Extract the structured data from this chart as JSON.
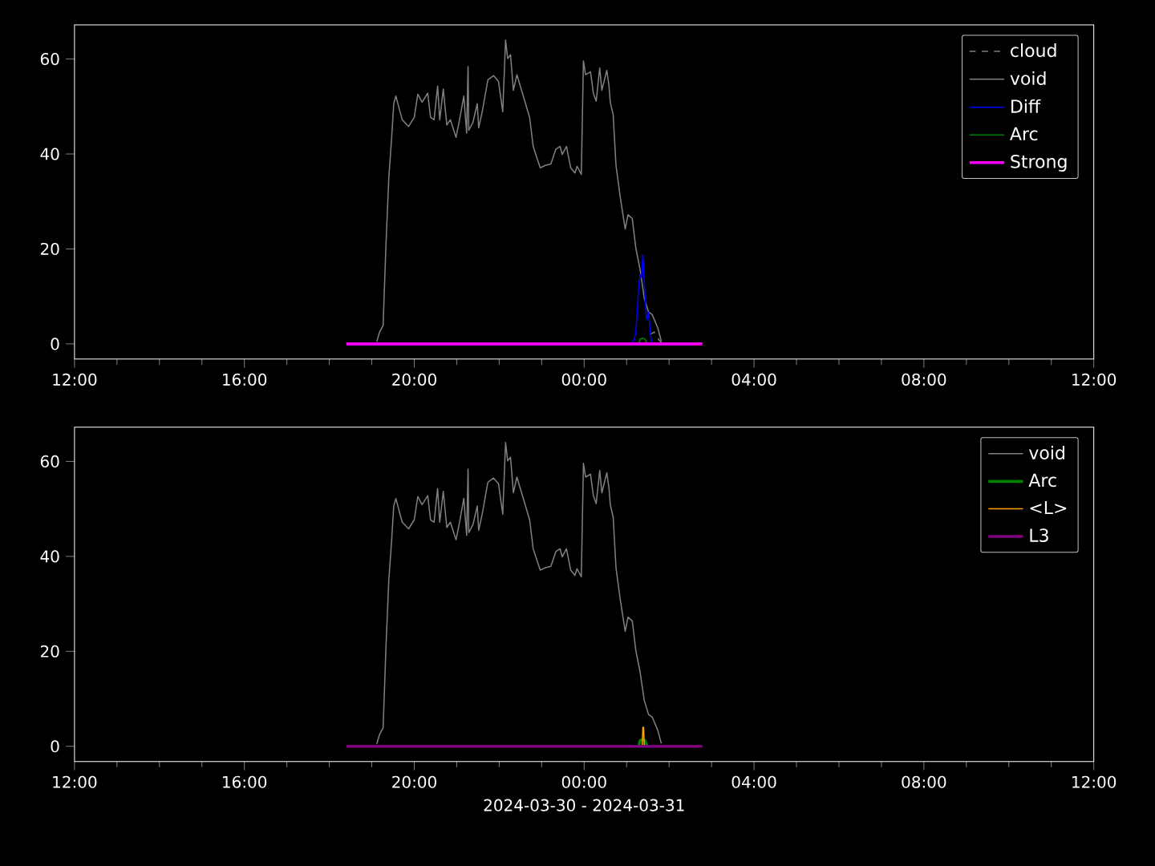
{
  "chart_data": [
    {
      "type": "line",
      "xlim": [
        "2024-03-30T12:00",
        "2024-03-31T12:00"
      ],
      "ylim": [
        -3.2,
        67.2
      ],
      "xticks": [
        {
          "value": "2024-03-30T12:00",
          "label": "12:00"
        },
        {
          "value": "2024-03-30T16:00",
          "label": "16:00"
        },
        {
          "value": "2024-03-30T20:00",
          "label": "20:00"
        },
        {
          "value": "2024-03-31T00:00",
          "label": "00:00"
        },
        {
          "value": "2024-03-31T04:00",
          "label": "04:00"
        },
        {
          "value": "2024-03-31T08:00",
          "label": "08:00"
        },
        {
          "value": "2024-03-31T12:00",
          "label": "12:00"
        }
      ],
      "yticks": [
        0,
        20,
        40,
        60
      ],
      "legend": "top right",
      "series": [
        {
          "name": "cloud",
          "color": "#808080",
          "line_style": "dashed",
          "x": [
            "2024-03-31T01:33",
            "2024-03-31T01:39",
            "2024-03-31T01:45",
            "2024-03-31T01:51"
          ],
          "values": [
            2,
            2.5,
            1,
            0
          ]
        },
        {
          "name": "void",
          "color": "#808080",
          "x": [
            "2024-03-30T19:07",
            "2024-03-30T19:11",
            "2024-03-30T19:16",
            "2024-03-30T19:20",
            "2024-03-30T19:24",
            "2024-03-30T19:28",
            "2024-03-30T19:31",
            "2024-03-30T19:34",
            "2024-03-30T19:39",
            "2024-03-30T19:43",
            "2024-03-30T19:52",
            "2024-03-30T20:00",
            "2024-03-30T20:05",
            "2024-03-30T20:11",
            "2024-03-30T20:19",
            "2024-03-30T20:23",
            "2024-03-30T20:28",
            "2024-03-30T20:33",
            "2024-03-30T20:36",
            "2024-03-30T20:41",
            "2024-03-30T20:46",
            "2024-03-30T20:51",
            "2024-03-30T20:59",
            "2024-03-30T21:04",
            "2024-03-30T21:10",
            "2024-03-30T21:14",
            "2024-03-30T21:16",
            "2024-03-30T21:17",
            "2024-03-30T21:23",
            "2024-03-30T21:29",
            "2024-03-30T21:31",
            "2024-03-30T21:36",
            "2024-03-30T21:44",
            "2024-03-30T21:52",
            "2024-03-30T21:59",
            "2024-03-30T22:05",
            "2024-03-30T22:09",
            "2024-03-30T22:12",
            "2024-03-30T22:16",
            "2024-03-30T22:20",
            "2024-03-30T22:25",
            "2024-03-30T22:35",
            "2024-03-30T22:43",
            "2024-03-30T22:48",
            "2024-03-30T22:53",
            "2024-03-30T22:58",
            "2024-03-30T23:05",
            "2024-03-30T23:13",
            "2024-03-30T23:20",
            "2024-03-30T23:26",
            "2024-03-30T23:29",
            "2024-03-30T23:35",
            "2024-03-30T23:41",
            "2024-03-30T23:47",
            "2024-03-30T23:50",
            "2024-03-30T23:56",
            "2024-03-30T23:59",
            "2024-03-31T00:02",
            "2024-03-31T00:09",
            "2024-03-31T00:13",
            "2024-03-31T00:17",
            "2024-03-31T00:22",
            "2024-03-31T00:25",
            "2024-03-31T00:32",
            "2024-03-31T00:35",
            "2024-03-31T00:37",
            "2024-03-31T00:41",
            "2024-03-31T00:45",
            "2024-03-31T00:51",
            "2024-03-31T00:58",
            "2024-03-31T01:02",
            "2024-03-31T01:08",
            "2024-03-31T01:13",
            "2024-03-31T01:19",
            "2024-03-31T01:25",
            "2024-03-31T01:31",
            "2024-03-31T01:36",
            "2024-03-31T01:44",
            "2024-03-31T01:49"
          ],
          "values": [
            0.5,
            2.5,
            3.9,
            20.8,
            34.9,
            43.3,
            50.6,
            52.2,
            49.4,
            47.2,
            45.8,
            47.7,
            52.6,
            50.9,
            52.8,
            47.7,
            47.2,
            54.3,
            47.2,
            53.7,
            46.1,
            47.2,
            43.5,
            47.2,
            52.2,
            44.4,
            58.4,
            45.0,
            46.7,
            50.6,
            45.5,
            48.9,
            55.6,
            56.5,
            55.3,
            48.9,
            64.0,
            60.1,
            60.9,
            53.4,
            56.7,
            51.7,
            47.7,
            41.6,
            39.3,
            37.1,
            37.6,
            37.9,
            41.0,
            41.6,
            39.9,
            41.6,
            37.1,
            36.0,
            37.4,
            35.7,
            59.6,
            56.7,
            57.3,
            52.8,
            51.1,
            58.1,
            53.4,
            57.6,
            54.5,
            50.8,
            48.3,
            37.6,
            30.9,
            24.2,
            27.2,
            26.4,
            20.2,
            15.7,
            9.6,
            6.7,
            6.2,
            3.4,
            0.6
          ]
        },
        {
          "name": "Diff",
          "color": "#0000ff",
          "x": [
            "2024-03-31T01:06",
            "2024-03-31T01:10",
            "2024-03-31T01:13",
            "2024-03-31T01:17",
            "2024-03-31T01:19",
            "2024-03-31T01:21",
            "2024-03-31T01:23",
            "2024-03-31T01:26",
            "2024-03-31T01:28",
            "2024-03-31T01:31",
            "2024-03-31T01:34",
            "2024-03-31T01:35",
            "2024-03-31T01:37"
          ],
          "values": [
            0,
            0.6,
            2.2,
            11.8,
            14.6,
            14.0,
            18.8,
            10.1,
            5.1,
            6.7,
            1.7,
            0.6,
            0
          ]
        },
        {
          "name": "Arc",
          "color": "#008000",
          "x": [
            "2024-03-31T01:17",
            "2024-03-31T01:19",
            "2024-03-31T01:23",
            "2024-03-31T01:26",
            "2024-03-31T01:29"
          ],
          "values": [
            0,
            1,
            1.2,
            1,
            0
          ]
        },
        {
          "name": "Strong",
          "color": "#ff00ff",
          "x": [
            "2024-03-30T18:24",
            "2024-03-31T02:47"
          ],
          "values": [
            0,
            0
          ]
        }
      ]
    },
    {
      "type": "line",
      "xlim": [
        "2024-03-30T12:00",
        "2024-03-31T12:00"
      ],
      "ylim": [
        -3.2,
        67.2
      ],
      "xlabel": "2024-03-30 - 2024-03-31",
      "xticks": [
        {
          "value": "2024-03-30T12:00",
          "label": "12:00"
        },
        {
          "value": "2024-03-30T16:00",
          "label": "16:00"
        },
        {
          "value": "2024-03-30T20:00",
          "label": "20:00"
        },
        {
          "value": "2024-03-31T00:00",
          "label": "00:00"
        },
        {
          "value": "2024-03-31T04:00",
          "label": "04:00"
        },
        {
          "value": "2024-03-31T08:00",
          "label": "08:00"
        },
        {
          "value": "2024-03-31T12:00",
          "label": "12:00"
        }
      ],
      "yticks": [
        0,
        20,
        40,
        60
      ],
      "legend": "top right",
      "series": [
        {
          "name": "void",
          "color": "#808080",
          "x": [
            "2024-03-30T19:07",
            "2024-03-30T19:11",
            "2024-03-30T19:16",
            "2024-03-30T19:20",
            "2024-03-30T19:24",
            "2024-03-30T19:28",
            "2024-03-30T19:31",
            "2024-03-30T19:34",
            "2024-03-30T19:39",
            "2024-03-30T19:43",
            "2024-03-30T19:52",
            "2024-03-30T20:00",
            "2024-03-30T20:05",
            "2024-03-30T20:11",
            "2024-03-30T20:19",
            "2024-03-30T20:23",
            "2024-03-30T20:28",
            "2024-03-30T20:33",
            "2024-03-30T20:36",
            "2024-03-30T20:41",
            "2024-03-30T20:46",
            "2024-03-30T20:51",
            "2024-03-30T20:59",
            "2024-03-30T21:04",
            "2024-03-30T21:10",
            "2024-03-30T21:14",
            "2024-03-30T21:16",
            "2024-03-30T21:17",
            "2024-03-30T21:23",
            "2024-03-30T21:29",
            "2024-03-30T21:31",
            "2024-03-30T21:36",
            "2024-03-30T21:44",
            "2024-03-30T21:52",
            "2024-03-30T21:59",
            "2024-03-30T22:05",
            "2024-03-30T22:09",
            "2024-03-30T22:12",
            "2024-03-30T22:16",
            "2024-03-30T22:20",
            "2024-03-30T22:25",
            "2024-03-30T22:35",
            "2024-03-30T22:43",
            "2024-03-30T22:48",
            "2024-03-30T22:53",
            "2024-03-30T22:58",
            "2024-03-30T23:05",
            "2024-03-30T23:13",
            "2024-03-30T23:20",
            "2024-03-30T23:26",
            "2024-03-30T23:29",
            "2024-03-30T23:35",
            "2024-03-30T23:41",
            "2024-03-30T23:47",
            "2024-03-30T23:50",
            "2024-03-30T23:56",
            "2024-03-30T23:59",
            "2024-03-31T00:02",
            "2024-03-31T00:09",
            "2024-03-31T00:13",
            "2024-03-31T00:17",
            "2024-03-31T00:22",
            "2024-03-31T00:25",
            "2024-03-31T00:32",
            "2024-03-31T00:35",
            "2024-03-31T00:37",
            "2024-03-31T00:41",
            "2024-03-31T00:45",
            "2024-03-31T00:51",
            "2024-03-31T00:58",
            "2024-03-31T01:02",
            "2024-03-31T01:08",
            "2024-03-31T01:13",
            "2024-03-31T01:19",
            "2024-03-31T01:25",
            "2024-03-31T01:31",
            "2024-03-31T01:36",
            "2024-03-31T01:44",
            "2024-03-31T01:49"
          ],
          "values": [
            0.5,
            2.5,
            3.9,
            20.8,
            34.9,
            43.3,
            50.6,
            52.2,
            49.4,
            47.2,
            45.8,
            47.7,
            52.6,
            50.9,
            52.8,
            47.7,
            47.2,
            54.3,
            47.2,
            53.7,
            46.1,
            47.2,
            43.5,
            47.2,
            52.2,
            44.4,
            58.4,
            45.0,
            46.7,
            50.6,
            45.5,
            48.9,
            55.6,
            56.5,
            55.3,
            48.9,
            64.0,
            60.1,
            60.9,
            53.4,
            56.7,
            51.7,
            47.7,
            41.6,
            39.3,
            37.1,
            37.6,
            37.9,
            41.0,
            41.6,
            39.9,
            41.6,
            37.1,
            36.0,
            37.4,
            35.7,
            59.6,
            56.7,
            57.3,
            52.8,
            51.1,
            58.1,
            53.4,
            57.6,
            54.5,
            50.8,
            48.3,
            37.6,
            30.9,
            24.2,
            27.2,
            26.4,
            20.2,
            15.7,
            9.6,
            6.7,
            6.2,
            3.4,
            0.6
          ]
        },
        {
          "name": "Arc",
          "color": "#008000",
          "x": [
            "2024-03-31T01:17",
            "2024-03-31T01:19",
            "2024-03-31T01:23",
            "2024-03-31T01:26",
            "2024-03-31T01:29"
          ],
          "values": [
            0,
            1.2,
            1.5,
            1.2,
            0
          ]
        },
        {
          "name": "<L>",
          "color": "#ffa500",
          "x": [
            "2024-03-31T01:22",
            "2024-03-31T01:23",
            "2024-03-31T01:24",
            "2024-03-31T01:25"
          ],
          "values": [
            0,
            4.0,
            4.0,
            0
          ]
        },
        {
          "name": "L3",
          "color": "#800080",
          "x": [
            "2024-03-30T18:24",
            "2024-03-31T02:47"
          ],
          "values": [
            0,
            0
          ]
        }
      ]
    }
  ]
}
